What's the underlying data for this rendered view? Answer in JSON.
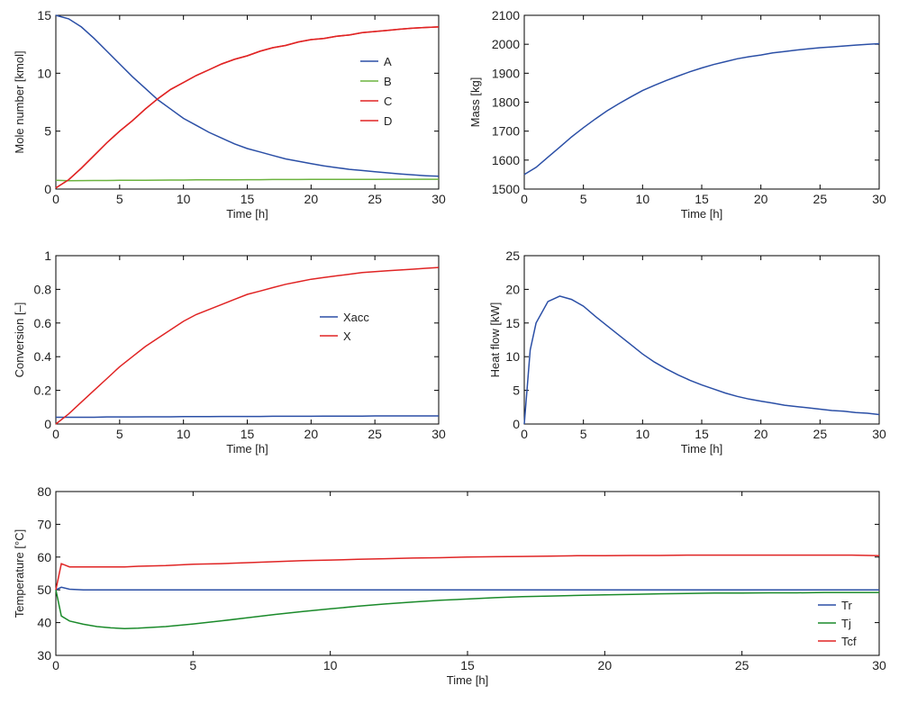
{
  "chart_data": [
    {
      "id": "moles",
      "type": "line",
      "xlabel": "Time [h]",
      "ylabel": "Mole number [kmol]",
      "xlim": [
        0,
        30
      ],
      "ylim": [
        0,
        15
      ],
      "xticks": [
        0,
        5,
        10,
        15,
        20,
        25,
        30
      ],
      "yticks": [
        0,
        5,
        10,
        15
      ],
      "grid": false,
      "legend": "right",
      "x": [
        0,
        1,
        2,
        3,
        4,
        5,
        6,
        7,
        8,
        9,
        10,
        11,
        12,
        13,
        14,
        15,
        16,
        17,
        18,
        19,
        20,
        21,
        22,
        23,
        24,
        25,
        26,
        27,
        28,
        29,
        30
      ],
      "series": [
        {
          "name": "A",
          "color": "#2b4fa6",
          "values": [
            15,
            14.7,
            14.0,
            13.0,
            11.9,
            10.8,
            9.7,
            8.7,
            7.7,
            6.9,
            6.1,
            5.5,
            4.9,
            4.4,
            3.9,
            3.5,
            3.2,
            2.9,
            2.6,
            2.4,
            2.2,
            2.0,
            1.85,
            1.7,
            1.6,
            1.5,
            1.4,
            1.3,
            1.22,
            1.15,
            1.1
          ]
        },
        {
          "name": "B",
          "color": "#6cb33f",
          "values": [
            0.75,
            0.72,
            0.73,
            0.74,
            0.74,
            0.75,
            0.76,
            0.76,
            0.77,
            0.78,
            0.78,
            0.79,
            0.8,
            0.8,
            0.8,
            0.81,
            0.81,
            0.82,
            0.82,
            0.82,
            0.83,
            0.83,
            0.83,
            0.84,
            0.84,
            0.84,
            0.85,
            0.85,
            0.85,
            0.85,
            0.85
          ]
        },
        {
          "name": "C",
          "color": "#e02424",
          "values": [
            0.1,
            0.8,
            1.8,
            2.9,
            4.0,
            5.0,
            5.9,
            6.9,
            7.8,
            8.6,
            9.2,
            9.8,
            10.3,
            10.8,
            11.2,
            11.5,
            11.9,
            12.2,
            12.4,
            12.7,
            12.9,
            13.0,
            13.2,
            13.3,
            13.5,
            13.6,
            13.7,
            13.8,
            13.9,
            13.95,
            14.0
          ]
        },
        {
          "name": "D",
          "color": "#e02424",
          "values": [
            0.1,
            0.8,
            1.8,
            2.9,
            4.0,
            5.0,
            5.9,
            6.9,
            7.8,
            8.6,
            9.2,
            9.8,
            10.3,
            10.8,
            11.2,
            11.5,
            11.9,
            12.2,
            12.4,
            12.7,
            12.9,
            13.0,
            13.2,
            13.3,
            13.5,
            13.6,
            13.7,
            13.8,
            13.9,
            13.95,
            14.0
          ]
        }
      ]
    },
    {
      "id": "mass",
      "type": "line",
      "xlabel": "Time [h]",
      "ylabel": "Mass [kg]",
      "xlim": [
        0,
        30
      ],
      "ylim": [
        1500,
        2100
      ],
      "xticks": [
        0,
        5,
        10,
        15,
        20,
        25,
        30
      ],
      "yticks": [
        1500,
        1600,
        1700,
        1800,
        1900,
        2000,
        2100
      ],
      "grid": false,
      "x": [
        0,
        1,
        2,
        3,
        4,
        5,
        6,
        7,
        8,
        9,
        10,
        11,
        12,
        13,
        14,
        15,
        16,
        17,
        18,
        19,
        20,
        21,
        22,
        23,
        24,
        25,
        26,
        27,
        28,
        29,
        30
      ],
      "series": [
        {
          "color": "#2b4fa6",
          "values": [
            1550,
            1575,
            1610,
            1645,
            1680,
            1712,
            1742,
            1770,
            1795,
            1818,
            1840,
            1858,
            1875,
            1890,
            1905,
            1918,
            1930,
            1940,
            1950,
            1957,
            1963,
            1970,
            1975,
            1980,
            1984,
            1988,
            1991,
            1994,
            1997,
            2000,
            2002
          ]
        }
      ]
    },
    {
      "id": "conversion",
      "type": "line",
      "xlabel": "Time [h]",
      "ylabel": "Conversion [–]",
      "xlim": [
        0,
        30
      ],
      "ylim": [
        0,
        1
      ],
      "xticks": [
        0,
        5,
        10,
        15,
        20,
        25,
        30
      ],
      "yticks": [
        0,
        0.2,
        0.4,
        0.6,
        0.8,
        1
      ],
      "grid": false,
      "legend": "right",
      "x": [
        0,
        1,
        2,
        3,
        4,
        5,
        6,
        7,
        8,
        9,
        10,
        11,
        12,
        13,
        14,
        15,
        16,
        17,
        18,
        19,
        20,
        21,
        22,
        23,
        24,
        25,
        26,
        27,
        28,
        29,
        30
      ],
      "series": [
        {
          "name": "Xacc",
          "color": "#2b4fa6",
          "values": [
            0.04,
            0.04,
            0.04,
            0.04,
            0.042,
            0.042,
            0.042,
            0.043,
            0.043,
            0.043,
            0.044,
            0.044,
            0.044,
            0.045,
            0.045,
            0.045,
            0.045,
            0.046,
            0.046,
            0.046,
            0.046,
            0.047,
            0.047,
            0.047,
            0.047,
            0.048,
            0.048,
            0.048,
            0.048,
            0.048,
            0.048
          ]
        },
        {
          "name": "X",
          "color": "#e02424",
          "values": [
            0,
            0.06,
            0.13,
            0.2,
            0.27,
            0.34,
            0.4,
            0.46,
            0.51,
            0.56,
            0.61,
            0.65,
            0.68,
            0.71,
            0.74,
            0.77,
            0.79,
            0.81,
            0.83,
            0.845,
            0.86,
            0.87,
            0.88,
            0.89,
            0.9,
            0.905,
            0.91,
            0.915,
            0.92,
            0.925,
            0.93
          ]
        }
      ]
    },
    {
      "id": "heat",
      "type": "line",
      "xlabel": "Time [h]",
      "ylabel": "Heat flow [kW]",
      "xlim": [
        0,
        30
      ],
      "ylim": [
        0,
        25
      ],
      "xticks": [
        0,
        5,
        10,
        15,
        20,
        25,
        30
      ],
      "yticks": [
        0,
        5,
        10,
        15,
        20,
        25
      ],
      "grid": false,
      "x": [
        0,
        0.5,
        1,
        2,
        3,
        4,
        5,
        6,
        7,
        8,
        9,
        10,
        11,
        12,
        13,
        14,
        15,
        16,
        17,
        18,
        19,
        20,
        21,
        22,
        23,
        24,
        25,
        26,
        27,
        28,
        29,
        30
      ],
      "series": [
        {
          "color": "#2b4fa6",
          "values": [
            0,
            11,
            15,
            18.2,
            19,
            18.5,
            17.5,
            16,
            14.6,
            13.2,
            11.8,
            10.4,
            9.2,
            8.2,
            7.3,
            6.5,
            5.8,
            5.2,
            4.6,
            4.1,
            3.7,
            3.4,
            3.1,
            2.8,
            2.6,
            2.4,
            2.2,
            2.0,
            1.9,
            1.7,
            1.6,
            1.4
          ]
        }
      ]
    },
    {
      "id": "temperature",
      "type": "line",
      "xlabel": "Time [h]",
      "ylabel": "Temperature [°C]",
      "xlim": [
        0,
        30
      ],
      "ylim": [
        30,
        80
      ],
      "xticks": [
        0,
        5,
        10,
        15,
        20,
        25,
        30
      ],
      "yticks": [
        30,
        40,
        50,
        60,
        70,
        80
      ],
      "grid": false,
      "legend": "bottom-right",
      "x": [
        0,
        0.2,
        0.5,
        1,
        1.5,
        2,
        2.5,
        3,
        4,
        5,
        6,
        7,
        8,
        9,
        10,
        11,
        12,
        13,
        14,
        15,
        16,
        17,
        18,
        19,
        20,
        21,
        22,
        23,
        24,
        25,
        26,
        27,
        28,
        29,
        30
      ],
      "series": [
        {
          "name": "Tr",
          "color": "#2b4fa6",
          "values": [
            50,
            50.8,
            50.2,
            50,
            50,
            50,
            50,
            50,
            50,
            50,
            50,
            50,
            50,
            50,
            50,
            50,
            50,
            50,
            50,
            50,
            50,
            50,
            50,
            50,
            50,
            50,
            50,
            50,
            50,
            50,
            50,
            50,
            50,
            50,
            50
          ]
        },
        {
          "name": "Tj",
          "color": "#1a8a2a",
          "values": [
            50,
            42,
            40.5,
            39.5,
            38.8,
            38.4,
            38.2,
            38.3,
            38.8,
            39.6,
            40.5,
            41.5,
            42.5,
            43.4,
            44.2,
            45,
            45.7,
            46.3,
            46.8,
            47.2,
            47.6,
            47.9,
            48.1,
            48.3,
            48.5,
            48.6,
            48.8,
            48.9,
            49,
            49,
            49.1,
            49.1,
            49.2,
            49.2,
            49.2
          ]
        },
        {
          "name": "Tcf",
          "color": "#e02424",
          "values": [
            50,
            58,
            57,
            57,
            57,
            57,
            57,
            57.2,
            57.4,
            57.8,
            58,
            58.3,
            58.6,
            58.9,
            59.1,
            59.3,
            59.5,
            59.7,
            59.8,
            60,
            60.1,
            60.2,
            60.3,
            60.4,
            60.4,
            60.5,
            60.5,
            60.6,
            60.6,
            60.6,
            60.6,
            60.6,
            60.6,
            60.6,
            60.4
          ]
        }
      ]
    }
  ]
}
